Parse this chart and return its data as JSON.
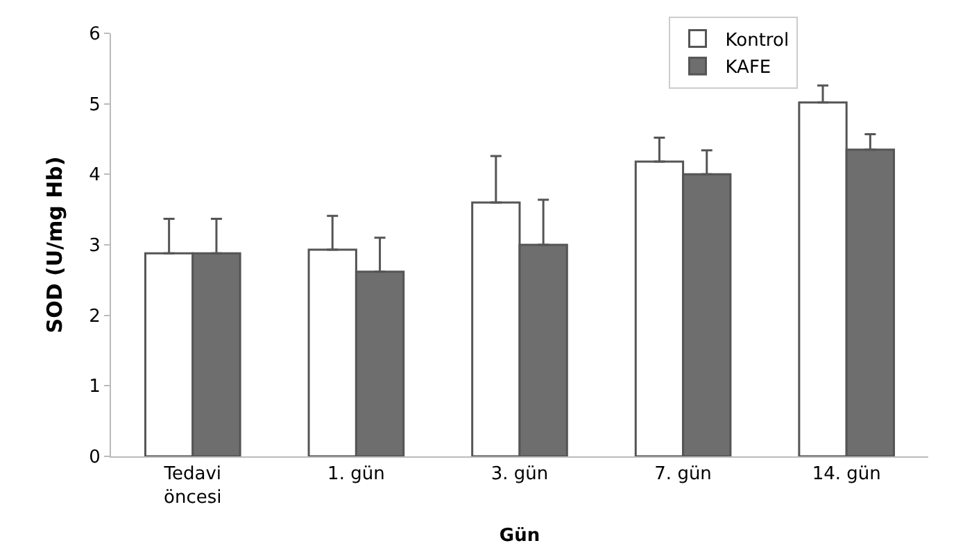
{
  "chart_data": {
    "type": "bar",
    "xlabel": "Gün",
    "ylabel": "SOD (U/mg Hb)",
    "categories": [
      "Tedavi\nöncesi",
      "1. gün",
      "3. gün",
      "7. gün",
      "14. gün"
    ],
    "series": [
      {
        "name": "Kontrol",
        "color": "#ffffff",
        "values": [
          2.88,
          2.93,
          3.6,
          4.18,
          5.02
        ],
        "errors": [
          [
            2.88,
            3.37
          ],
          [
            2.93,
            3.41
          ],
          [
            3.6,
            4.26
          ],
          [
            4.18,
            4.52
          ],
          [
            5.02,
            5.26
          ]
        ]
      },
      {
        "name": "KAFE",
        "color": "#6e6e6e",
        "values": [
          2.88,
          2.62,
          3.0,
          4.0,
          4.35
        ],
        "errors": [
          [
            2.88,
            3.37
          ],
          [
            2.62,
            3.1
          ],
          [
            3.0,
            3.64
          ],
          [
            4.0,
            4.34
          ],
          [
            4.35,
            4.57
          ]
        ]
      }
    ],
    "ylim": [
      0,
      6
    ],
    "yticks": [
      0,
      1,
      2,
      3,
      4,
      5,
      6
    ],
    "legend": "top right"
  }
}
